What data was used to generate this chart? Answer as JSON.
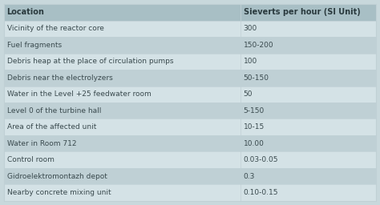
{
  "col1_header": "Location",
  "col2_header": "Sieverts per hour (SI Unit)",
  "rows": [
    [
      "Vicinity of the reactor core",
      "300"
    ],
    [
      "Fuel fragments",
      "150-200"
    ],
    [
      "Debris heap at the place of circulation pumps",
      "100"
    ],
    [
      "Debris near the electrolyzers",
      "50-150"
    ],
    [
      "Water in the Level +25 feedwater room",
      "50"
    ],
    [
      "Level 0 of the turbine hall",
      "5-150"
    ],
    [
      "Area of the affected unit",
      "10-15"
    ],
    [
      "Water in Room 712",
      "10.00"
    ],
    [
      "Control room",
      "0.03-0.05"
    ],
    [
      "Gidroelektromontazh depot",
      "0.3"
    ],
    [
      "Nearby concrete mixing unit",
      "0.10-0.15"
    ]
  ],
  "header_bg": "#a8bfc5",
  "row_bg_light": "#d4e2e6",
  "row_bg_dark": "#bfd0d5",
  "border_color": "#c0d0d5",
  "text_color": "#3a4a4e",
  "header_text_color": "#2a3a3e",
  "col_split": 0.635,
  "font_size": 6.5,
  "header_font_size": 7.0,
  "fig_bg": "#c8d8dc"
}
